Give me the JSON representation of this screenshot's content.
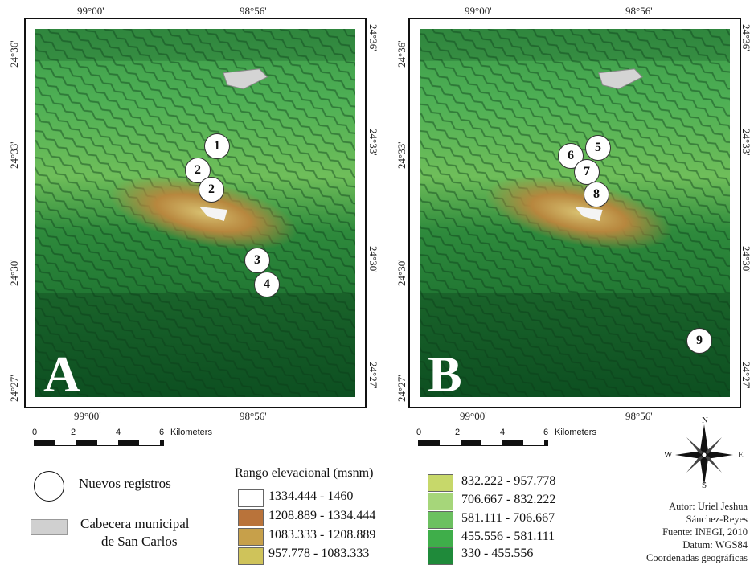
{
  "panels": [
    {
      "letter": "A",
      "top_ticks": [
        "99°00'",
        "98°56'"
      ],
      "bottom_ticks": [
        "99°00'",
        "98°56'"
      ],
      "side_ticks": [
        "24°36'",
        "24°33'",
        "24°30'",
        "24°27'"
      ],
      "markers": [
        "1",
        "2",
        "2",
        "3",
        "4"
      ]
    },
    {
      "letter": "B",
      "top_ticks": [
        "99°00'",
        "98°56'"
      ],
      "bottom_ticks": [
        "99°00'",
        "98°56'"
      ],
      "side_ticks": [
        "24°36'",
        "24°33'",
        "24°30'",
        "24°27'"
      ],
      "markers": [
        "5",
        "6",
        "7",
        "8",
        "9"
      ]
    }
  ],
  "scale_bar": {
    "labels": [
      "0",
      "2",
      "4",
      "6"
    ],
    "unit": "Kilometers"
  },
  "legend": {
    "new_records_label": "Nuevos registros",
    "town_label_line1": "Cabecera municipal",
    "town_label_line2": "de San Carlos",
    "elevation_title": "Rango elevacional (msnm)",
    "ranges": [
      {
        "label": "1334.444 - 1460",
        "color": "#ffffff"
      },
      {
        "label": "1208.889 - 1334.444",
        "color": "#b9733a"
      },
      {
        "label": "1083.333 - 1208.889",
        "color": "#c7a04a"
      },
      {
        "label": "957.778 - 1083.333",
        "color": "#cfc35a"
      },
      {
        "label": "832.222 - 957.778",
        "color": "#c7d86a"
      },
      {
        "label": "706.667 - 832.222",
        "color": "#a6d67a"
      },
      {
        "label": "581.111 - 706.667",
        "color": "#6cc060"
      },
      {
        "label": "455.556 - 581.111",
        "color": "#3fae4a"
      },
      {
        "label": "330 - 455.556",
        "color": "#1f8a3a"
      }
    ]
  },
  "compass": {
    "n": "N",
    "s": "S",
    "e": "E",
    "w": "W"
  },
  "credits": {
    "line1": "Autor: Uriel Jeshua",
    "line2": "Sánchez-Reyes",
    "line3": "Fuente: INEGI, 2010",
    "line4": "Datum: WGS84",
    "line5": "Coordenadas geográficas"
  }
}
